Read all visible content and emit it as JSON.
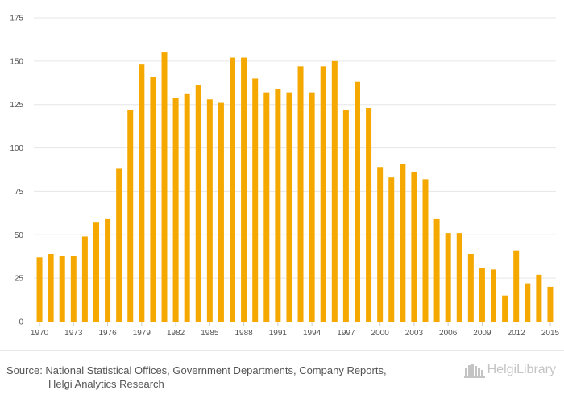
{
  "chart_data": {
    "type": "bar",
    "categories": [
      "1970",
      "1971",
      "1972",
      "1973",
      "1974",
      "1975",
      "1976",
      "1977",
      "1978",
      "1979",
      "1980",
      "1981",
      "1982",
      "1983",
      "1984",
      "1985",
      "1986",
      "1987",
      "1988",
      "1989",
      "1990",
      "1991",
      "1992",
      "1993",
      "1994",
      "1995",
      "1996",
      "1997",
      "1998",
      "1999",
      "2000",
      "2001",
      "2002",
      "2003",
      "2004",
      "2005",
      "2006",
      "2007",
      "2008",
      "2009",
      "2010",
      "2011",
      "2012",
      "2013",
      "2014",
      "2015"
    ],
    "values": [
      37,
      39,
      38,
      38,
      49,
      57,
      59,
      88,
      122,
      148,
      141,
      155,
      129,
      131,
      136,
      128,
      126,
      152,
      152,
      140,
      132,
      134,
      132,
      147,
      132,
      147,
      150,
      122,
      138,
      123,
      89,
      83,
      91,
      86,
      82,
      59,
      51,
      51,
      39,
      31,
      30,
      15,
      41,
      22,
      27,
      20
    ],
    "x_tick_labels": [
      "1970",
      "1973",
      "1976",
      "1979",
      "1982",
      "1985",
      "1988",
      "1991",
      "1994",
      "1997",
      "2000",
      "2003",
      "2006",
      "2009",
      "2012",
      "2015"
    ],
    "y_ticks": [
      0,
      25,
      50,
      75,
      100,
      125,
      150,
      175
    ],
    "ylim": [
      0,
      175
    ],
    "title": "",
    "xlabel": "",
    "ylabel": "",
    "grid": true,
    "bar_color": "#f5a800"
  },
  "footer": {
    "source_line1": "Source: National Statistical Offices, Government Departments, Company Reports,",
    "source_line2": "Helgi Analytics Research",
    "brand": "HelgiLibrary"
  }
}
